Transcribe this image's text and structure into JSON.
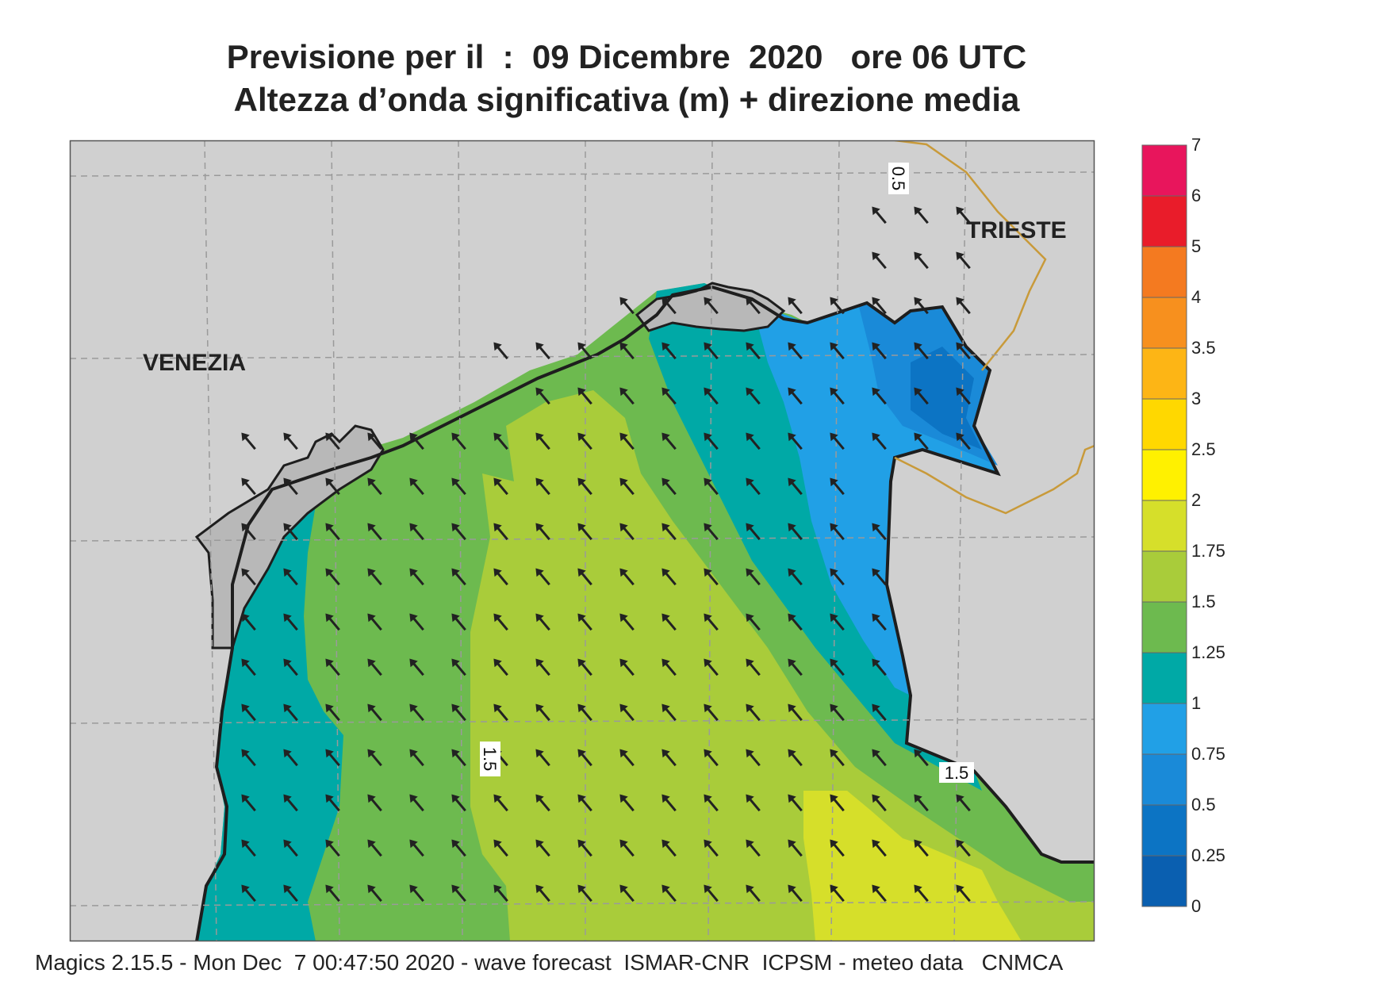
{
  "title": {
    "line1": "Previsione per il  :  09 Dicembre  2020   ore 06 UTC",
    "line2": "Altezza d’onda significativa (m) + direzione media"
  },
  "map": {
    "cities": [
      "VENEZIA",
      "TRIESTE"
    ],
    "contour_labels": [
      "0.5",
      "1.5",
      "1.5"
    ],
    "arrow_direction": "north-west",
    "colors": {
      "land": "#d0d0d0",
      "coast": "#1e1e1e",
      "border": "#c89a3a",
      "grid": "#9a9a9a"
    }
  },
  "legend": {
    "ticks": [
      "0",
      "0.25",
      "0.5",
      "0.75",
      "1",
      "1.25",
      "1.5",
      "1.75",
      "2",
      "2.5",
      "3",
      "3.5",
      "4",
      "5",
      "6",
      "7"
    ],
    "colors": [
      "#0a5fb0",
      "#0c74c4",
      "#1a8ad8",
      "#21a0e6",
      "#00a9a6",
      "#6dba4f",
      "#a9cc3a",
      "#d6df2a",
      "#fff100",
      "#ffd800",
      "#fdb515",
      "#f7901e",
      "#f47a20",
      "#e91c2a",
      "#e8155c"
    ]
  },
  "footer": "Magics 2.15.5 - Mon Dec  7 00:47:50 2020 - wave forecast  ISMAR-CNR  ICPSM - meteo data   CNMCA"
}
